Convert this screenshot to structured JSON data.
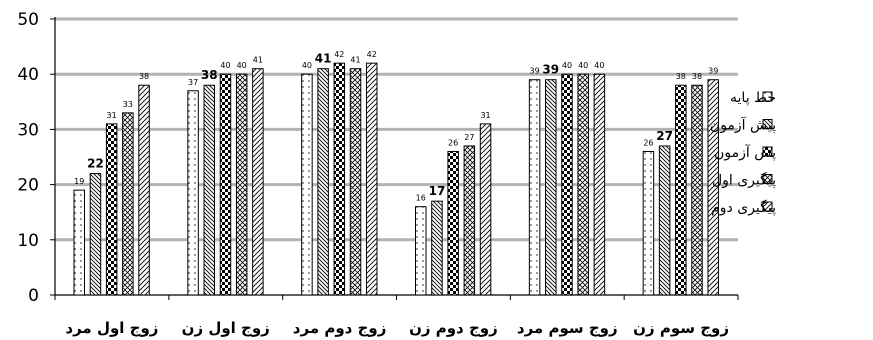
{
  "chart_data": {
    "type": "bar",
    "categories": [
      "زوج اول مرد",
      "زوج اول زن",
      "زوج دوم مرد",
      "زوج دوم زن",
      "زوج سوم مرد",
      "زوج سوم زن"
    ],
    "series": [
      {
        "name": "خط پایه",
        "values": [
          19,
          37,
          40,
          16,
          39,
          26
        ]
      },
      {
        "name": "پیش آزمون",
        "values": [
          22,
          38,
          41,
          17,
          39,
          27
        ]
      },
      {
        "name": "پس آزمون",
        "values": [
          31,
          40,
          42,
          26,
          40,
          38
        ]
      },
      {
        "name": "پیگیری اول",
        "values": [
          33,
          40,
          41,
          27,
          40,
          38
        ]
      },
      {
        "name": "پیگیری دوم",
        "values": [
          38,
          41,
          42,
          31,
          40,
          39
        ]
      }
    ],
    "ylim": [
      0,
      50
    ],
    "yticks": [
      0,
      10,
      20,
      30,
      40,
      50
    ],
    "grid": true,
    "legend_position": "right"
  }
}
